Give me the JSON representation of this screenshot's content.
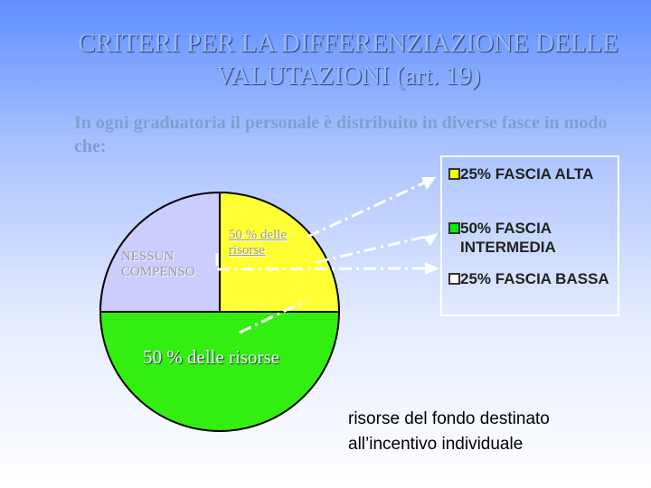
{
  "slide": {
    "title": "CRITERI PER LA DIFFERENZIAZIONE DELLE VALUTAZIONI (art. 19)",
    "body": "In ogni graduatoria il personale è distribuito in diverse fasce in modo che:",
    "legend_box": {
      "items": [
        {
          "label": "25% FASCIA ALTA",
          "color": "#ffff00"
        },
        {
          "label": "50% FASCIA INTERMEDIA",
          "color": "#00ee00"
        },
        {
          "label": "25% FASCIA BASSA",
          "color": "#ffffff"
        }
      ]
    },
    "note": "risorse del fondo destinato all’incentivo individuale"
  },
  "chart_data": {
    "type": "pie",
    "categories": [
      "50 % delle risorse",
      "50 % delle risorse",
      "NESSUN COMPENSO"
    ],
    "values": [
      25,
      50,
      25
    ],
    "colors": [
      "#ffff33",
      "#33ee11",
      "#ccccff"
    ]
  }
}
